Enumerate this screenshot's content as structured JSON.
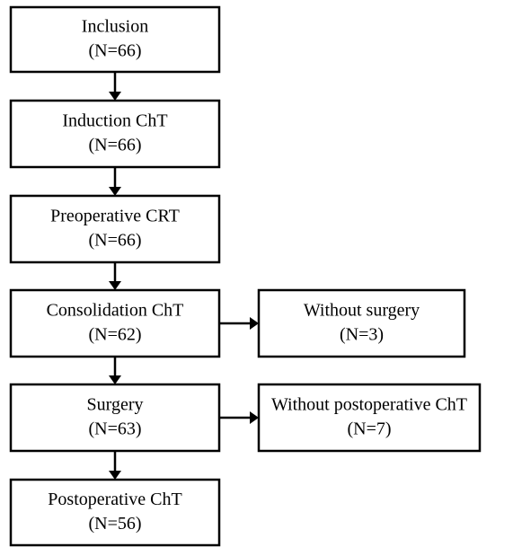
{
  "nodes": [
    {
      "label": "Inclusion",
      "count": "(N=66)"
    },
    {
      "label": "Induction ChT",
      "count": "(N=66)"
    },
    {
      "label": "Preoperative CRT",
      "count": "(N=66)"
    },
    {
      "label": "Consolidation ChT",
      "count": "(N=62)"
    },
    {
      "label": "Surgery",
      "count": "(N=63)"
    },
    {
      "label": "Postoperative ChT",
      "count": "(N=56)"
    },
    {
      "label": "Without surgery",
      "count": "(N=3)"
    },
    {
      "label": "Without postoperative ChT",
      "count": "(N=7)"
    }
  ]
}
